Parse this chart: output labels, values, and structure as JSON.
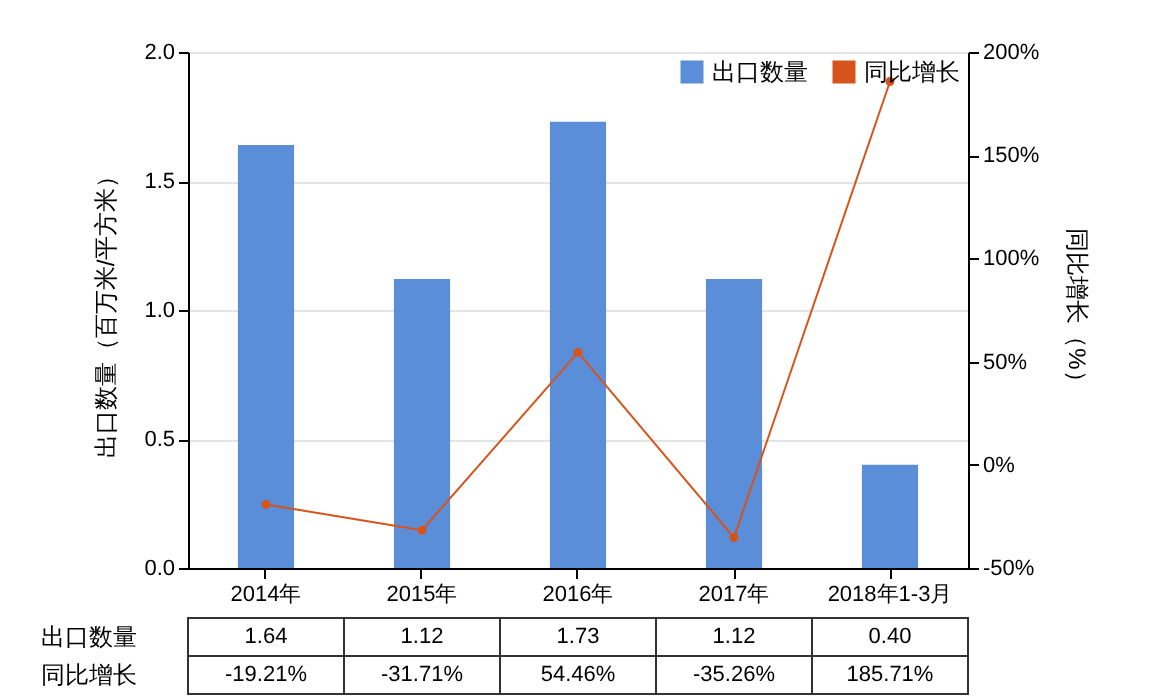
{
  "chart_data": {
    "type": "bar",
    "categories": [
      "2014年",
      "2015年",
      "2016年",
      "2017年",
      "2018年1-3月"
    ],
    "ylabel": "出口数量（百万米/平方米）",
    "y2label": "同比增长（%）",
    "ylim": [
      0,
      2
    ],
    "yticks": [
      {
        "value": 0,
        "label": "0.0"
      },
      {
        "value": 0.5,
        "label": "0.5"
      },
      {
        "value": 1,
        "label": "1.0"
      },
      {
        "value": 1.5,
        "label": "1.5"
      },
      {
        "value": 2,
        "label": "2.0"
      }
    ],
    "y2lim": [
      -50,
      200
    ],
    "y2ticks": [
      {
        "value": -50,
        "label": "-50%"
      },
      {
        "value": 0,
        "label": "0%"
      },
      {
        "value": 50,
        "label": "50%"
      },
      {
        "value": 100,
        "label": "100%"
      },
      {
        "value": 150,
        "label": "150%"
      },
      {
        "value": 200,
        "label": "200%"
      }
    ],
    "grid": "y",
    "legend": "top right",
    "marker": "circle",
    "series": [
      {
        "name": "出口数量",
        "color": "#5b8ed8",
        "values": [
          1.64,
          1.12,
          1.73,
          1.12,
          0.4
        ],
        "value_labels": [
          "1.64",
          "1.12",
          "1.73",
          "1.12",
          "0.40"
        ]
      },
      {
        "name": "同比增长",
        "type": "line",
        "axis": "y2",
        "color": "#d6541c",
        "values": [
          -19.21,
          -31.71,
          54.46,
          -35.26,
          185.71
        ],
        "value_labels": [
          "-19.21%",
          "-31.71%",
          "54.46%",
          "-35.26%",
          "185.71%"
        ]
      }
    ]
  }
}
